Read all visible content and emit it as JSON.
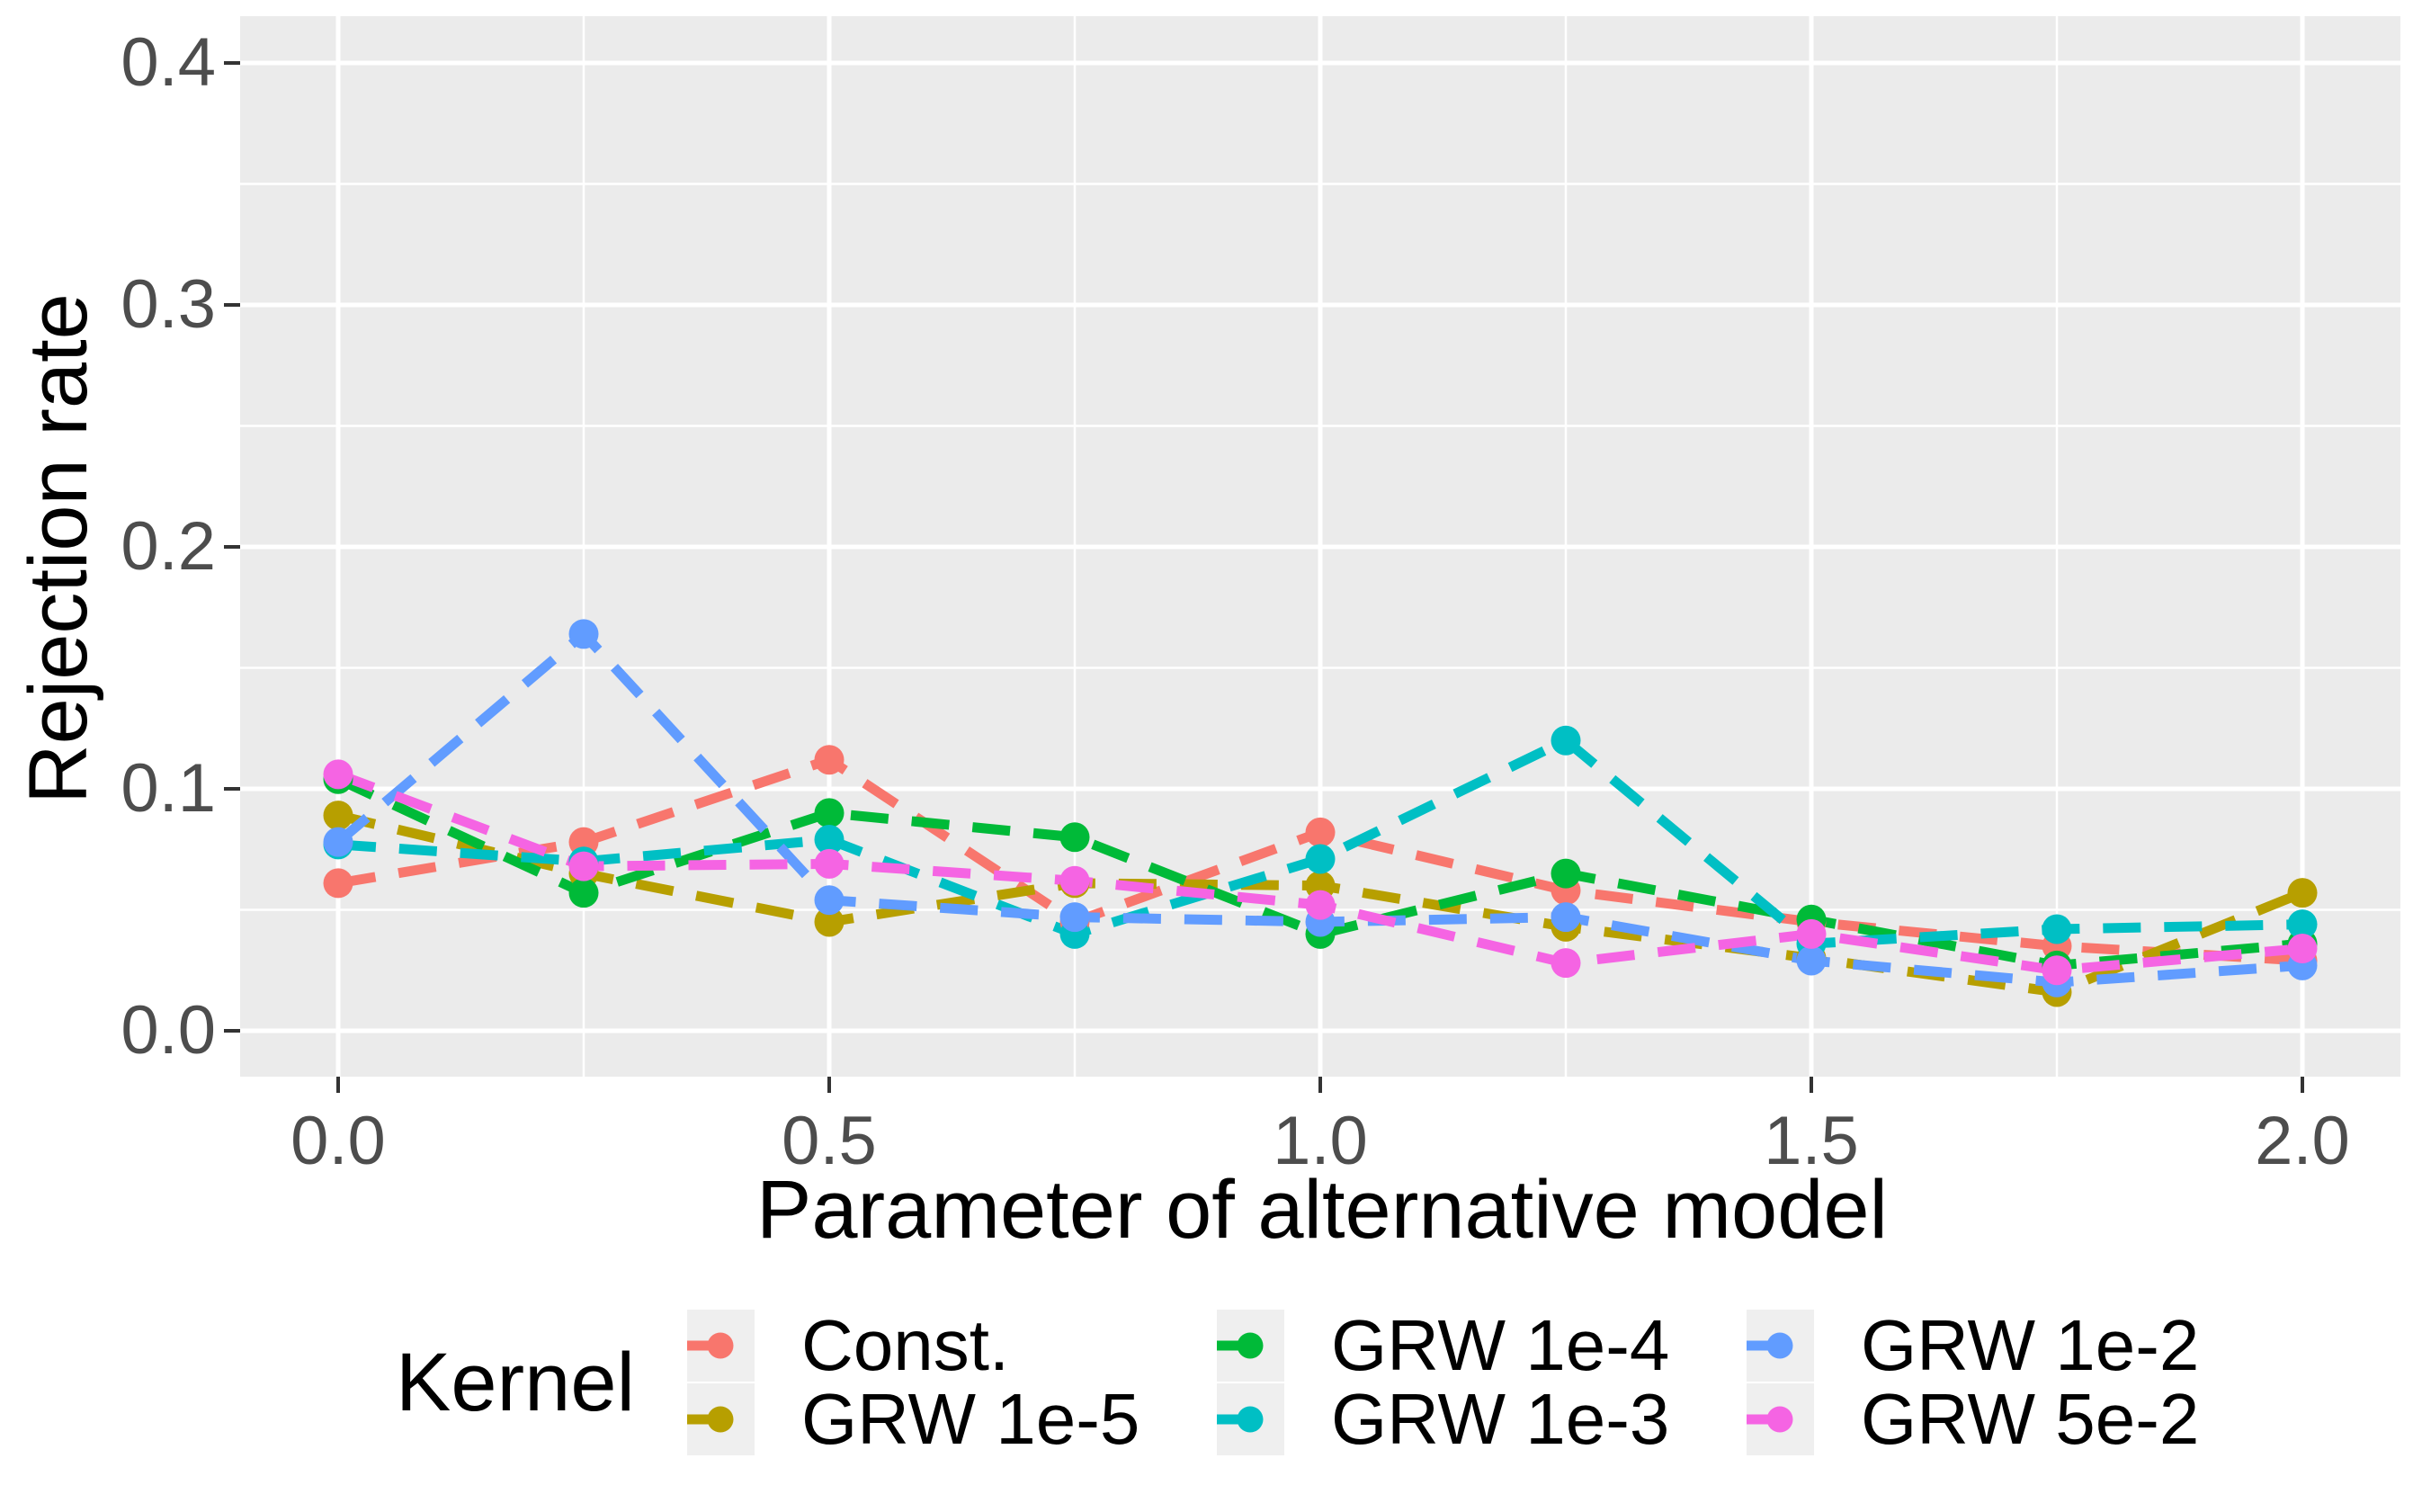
{
  "figure": {
    "background": "#FFFFFF",
    "panel_fill": "#EBEBEB",
    "grid_color": "#FFFFFF",
    "tick_mark_color": "#333333",
    "tick_label_color": "#4D4D4D",
    "axis_title_color": "#000000",
    "legend_key_fill": "#EFEFEF"
  },
  "chart_data": {
    "type": "line",
    "style": "dashed-lines-with-points",
    "xlabel": "Parameter of alternative model",
    "ylabel": "Rejection rate",
    "x": [
      0,
      0.25,
      0.5,
      0.75,
      1.0,
      1.25,
      1.5,
      1.75,
      2.0
    ],
    "series": [
      {
        "name": "Const.",
        "color": "#F8766D",
        "values": [
          0.061,
          0.078,
          0.112,
          0.045,
          0.082,
          0.058,
          0.045,
          0.035,
          0.029
        ]
      },
      {
        "name": "GRW 1e-5",
        "color": "#B79F00",
        "values": [
          0.089,
          0.065,
          0.045,
          0.061,
          0.06,
          0.043,
          0.03,
          0.016,
          0.057
        ]
      },
      {
        "name": "GRW 1e-4",
        "color": "#00BA38",
        "values": [
          0.104,
          0.057,
          0.09,
          0.08,
          0.04,
          0.065,
          0.046,
          0.027,
          0.036
        ]
      },
      {
        "name": "GRW 1e-3",
        "color": "#00BFC4",
        "values": [
          0.077,
          0.07,
          0.079,
          0.04,
          0.071,
          0.12,
          0.036,
          0.042,
          0.044
        ]
      },
      {
        "name": "GRW 1e-2",
        "color": "#619CFF",
        "values": [
          0.078,
          0.164,
          0.054,
          0.047,
          0.045,
          0.047,
          0.029,
          0.02,
          0.027
        ]
      },
      {
        "name": "GRW 5e-2",
        "color": "#F564E3",
        "values": [
          0.106,
          0.068,
          0.069,
          0.062,
          0.052,
          0.028,
          0.04,
          0.025,
          0.034
        ]
      }
    ],
    "x_ticks": {
      "values": [
        0,
        0.5,
        1.0,
        1.5,
        2.0
      ],
      "labels": [
        "0.0",
        "0.5",
        "1.0",
        "1.5",
        "2.0"
      ]
    },
    "y_ticks": {
      "values": [
        0,
        0.1,
        0.2,
        0.3,
        0.4
      ],
      "labels": [
        "0.0",
        "0.1",
        "0.2",
        "0.3",
        "0.4"
      ]
    },
    "x_minor": [
      0.25,
      0.75,
      1.25,
      1.75
    ],
    "y_minor": [
      0.05,
      0.15,
      0.25,
      0.35
    ],
    "xlim": [
      -0.1,
      2.1
    ],
    "ylim": [
      -0.019,
      0.419
    ],
    "grid": true,
    "legend": {
      "title": "Kernel",
      "position": "bottom",
      "columns": [
        [
          "Const.",
          "GRW 1e-5"
        ],
        [
          "GRW 1e-4",
          "GRW 1e-3"
        ],
        [
          "GRW 1e-2",
          "GRW 5e-2"
        ]
      ]
    }
  }
}
